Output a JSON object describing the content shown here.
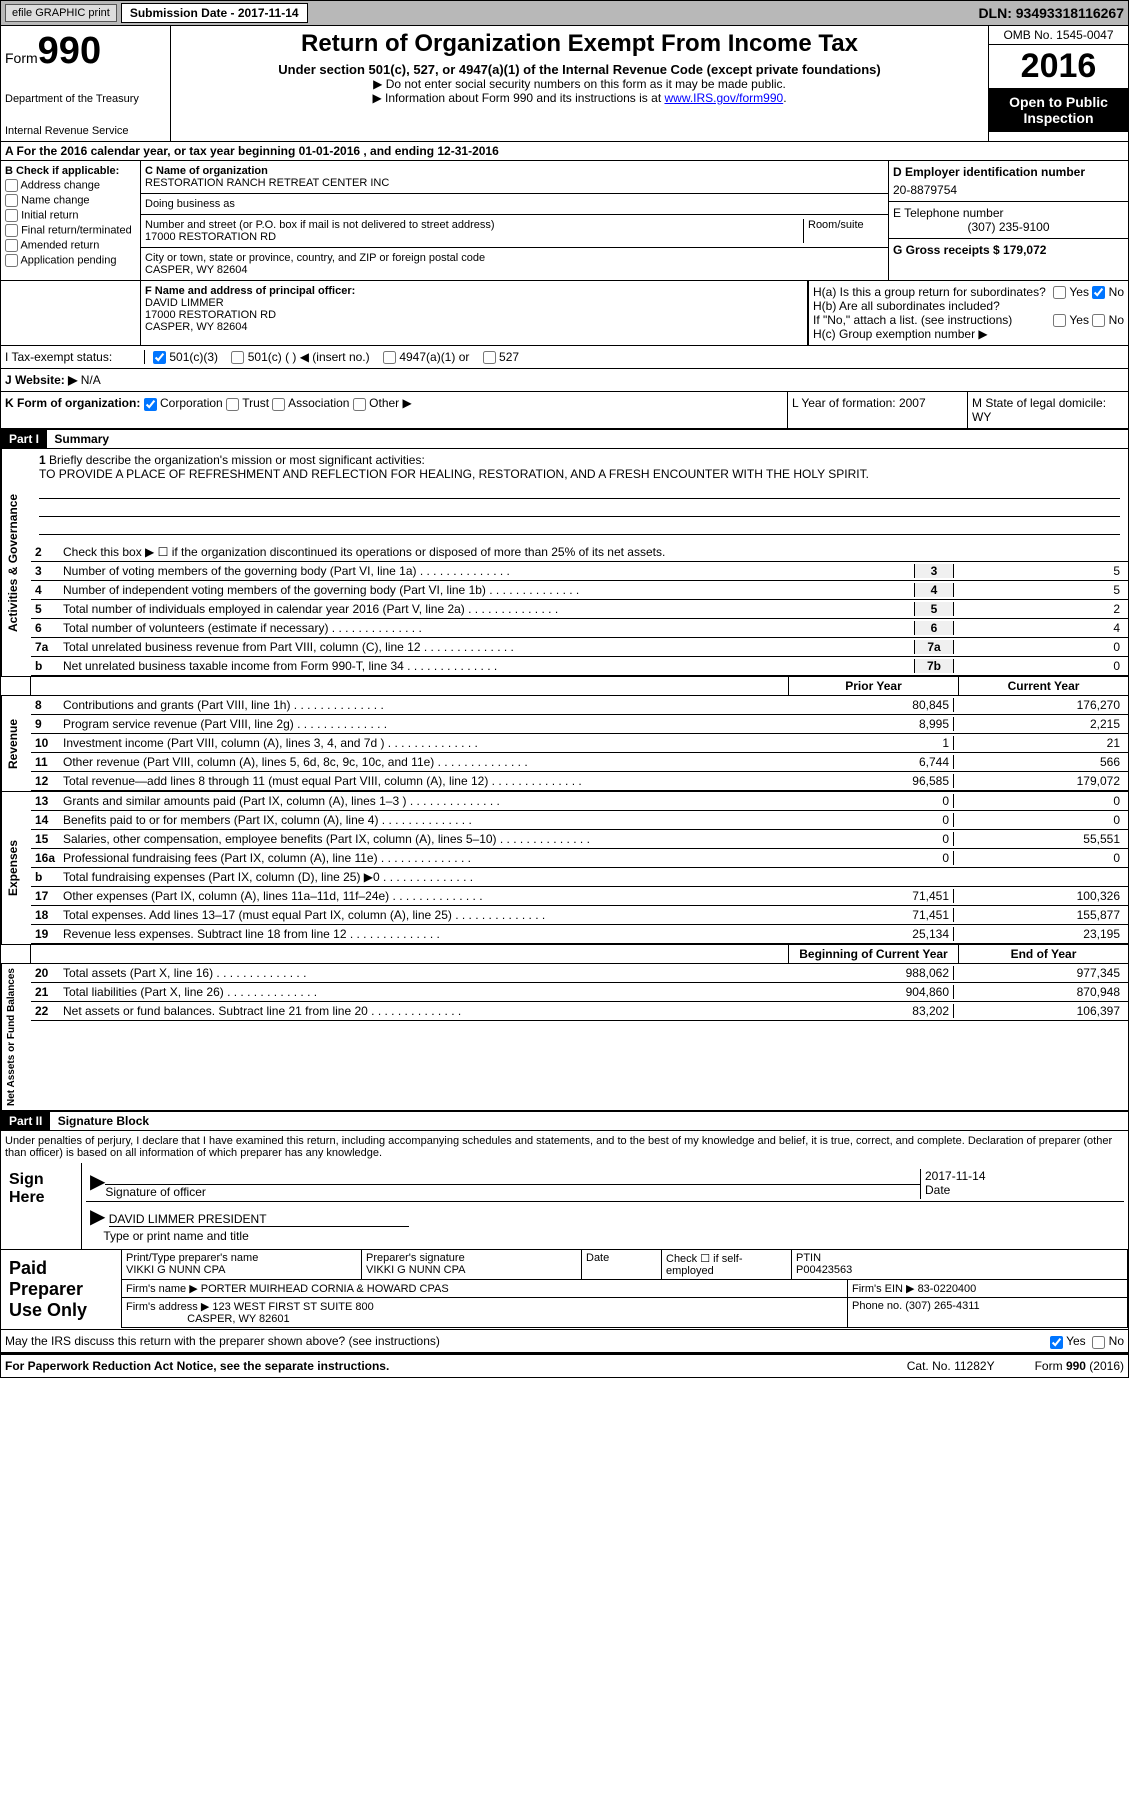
{
  "topbar": {
    "efile": "efile GRAPHIC print",
    "submission": "Submission Date - 2017-11-14",
    "dln": "DLN: 93493318116267"
  },
  "header": {
    "form_label": "Form",
    "form_num": "990",
    "dept": "Department of the Treasury",
    "irs": "Internal Revenue Service",
    "title": "Return of Organization Exempt From Income Tax",
    "subtitle": "Under section 501(c), 527, or 4947(a)(1) of the Internal Revenue Code (except private foundations)",
    "note1": "▶ Do not enter social security numbers on this form as it may be made public.",
    "note2_pre": "▶ Information about Form 990 and its instructions is at ",
    "note2_link": "www.IRS.gov/form990",
    "omb": "OMB No. 1545-0047",
    "year": "2016",
    "open": "Open to Public Inspection"
  },
  "section_a": "A  For the 2016 calendar year, or tax year beginning 01-01-2016    , and ending 12-31-2016",
  "b": {
    "label": "B Check if applicable:",
    "items": [
      "Address change",
      "Name change",
      "Initial return",
      "Final return/terminated",
      "Amended return",
      "Application pending"
    ]
  },
  "c": {
    "name_label": "C Name of organization",
    "name": "RESTORATION RANCH RETREAT CENTER INC",
    "dba_label": "Doing business as",
    "addr_label": "Number and street (or P.O. box if mail is not delivered to street address)",
    "room": "Room/suite",
    "addr": "17000 RESTORATION RD",
    "city_label": "City or town, state or province, country, and ZIP or foreign postal code",
    "city": "CASPER, WY 82604"
  },
  "d": {
    "ein_label": "D Employer identification number",
    "ein": "20-8879754",
    "phone_label": "E Telephone number",
    "phone": "(307) 235-9100",
    "gross_label": "G Gross receipts $ 179,072"
  },
  "f": {
    "label": "F Name and address of principal officer:",
    "name": "DAVID LIMMER",
    "addr1": "17000 RESTORATION RD",
    "addr2": "CASPER, WY  82604"
  },
  "h": {
    "a": "H(a)  Is this a group return for subordinates?",
    "b": "H(b)  Are all subordinates included?",
    "b_note": "If \"No,\" attach a list. (see instructions)",
    "c": "H(c)  Group exemption number ▶",
    "yes": "Yes",
    "no": "No"
  },
  "i": {
    "label": "I  Tax-exempt status:",
    "o1": "501(c)(3)",
    "o2": "501(c) (   ) ◀ (insert no.)",
    "o3": "4947(a)(1) or",
    "o4": "527"
  },
  "j": {
    "label": "J  Website: ▶",
    "val": "N/A"
  },
  "k": {
    "label": "K Form of organization:",
    "corp": "Corporation",
    "trust": "Trust",
    "assoc": "Association",
    "other": "Other ▶"
  },
  "l": "L Year of formation: 2007",
  "m": "M State of legal domicile: WY",
  "part1": {
    "title": "Part I",
    "name": "Summary",
    "vert_ag": "Activities & Governance",
    "vert_rev": "Revenue",
    "vert_exp": "Expenses",
    "vert_na": "Net Assets or Fund Balances",
    "l1": "Briefly describe the organization's mission or most significant activities:",
    "mission": "TO PROVIDE A PLACE OF REFRESHMENT AND REFLECTION FOR HEALING, RESTORATION, AND A FRESH ENCOUNTER WITH THE HOLY SPIRIT.",
    "l2": "Check this box ▶ ☐  if the organization discontinued its operations or disposed of more than 25% of its net assets.",
    "lines": [
      {
        "n": "3",
        "t": "Number of voting members of the governing body (Part VI, line 1a)",
        "box": "3",
        "v": "5"
      },
      {
        "n": "4",
        "t": "Number of independent voting members of the governing body (Part VI, line 1b)",
        "box": "4",
        "v": "5"
      },
      {
        "n": "5",
        "t": "Total number of individuals employed in calendar year 2016 (Part V, line 2a)",
        "box": "5",
        "v": "2"
      },
      {
        "n": "6",
        "t": "Total number of volunteers (estimate if necessary)",
        "box": "6",
        "v": "4"
      },
      {
        "n": "7a",
        "t": "Total unrelated business revenue from Part VIII, column (C), line 12",
        "box": "7a",
        "v": "0"
      },
      {
        "n": "b",
        "t": "Net unrelated business taxable income from Form 990-T, line 34",
        "box": "7b",
        "v": "0"
      }
    ],
    "prior": "Prior Year",
    "current": "Current Year",
    "rev": [
      {
        "n": "8",
        "t": "Contributions and grants (Part VIII, line 1h)",
        "p": "80,845",
        "c": "176,270"
      },
      {
        "n": "9",
        "t": "Program service revenue (Part VIII, line 2g)",
        "p": "8,995",
        "c": "2,215"
      },
      {
        "n": "10",
        "t": "Investment income (Part VIII, column (A), lines 3, 4, and 7d )",
        "p": "1",
        "c": "21"
      },
      {
        "n": "11",
        "t": "Other revenue (Part VIII, column (A), lines 5, 6d, 8c, 9c, 10c, and 11e)",
        "p": "6,744",
        "c": "566"
      },
      {
        "n": "12",
        "t": "Total revenue—add lines 8 through 11 (must equal Part VIII, column (A), line 12)",
        "p": "96,585",
        "c": "179,072"
      }
    ],
    "exp": [
      {
        "n": "13",
        "t": "Grants and similar amounts paid (Part IX, column (A), lines 1–3 )",
        "p": "0",
        "c": "0"
      },
      {
        "n": "14",
        "t": "Benefits paid to or for members (Part IX, column (A), line 4)",
        "p": "0",
        "c": "0"
      },
      {
        "n": "15",
        "t": "Salaries, other compensation, employee benefits (Part IX, column (A), lines 5–10)",
        "p": "0",
        "c": "55,551"
      },
      {
        "n": "16a",
        "t": "Professional fundraising fees (Part IX, column (A), line 11e)",
        "p": "0",
        "c": "0"
      },
      {
        "n": "b",
        "t": "Total fundraising expenses (Part IX, column (D), line 25) ▶0",
        "p": "",
        "c": "",
        "gray": true
      },
      {
        "n": "17",
        "t": "Other expenses (Part IX, column (A), lines 11a–11d, 11f–24e)",
        "p": "71,451",
        "c": "100,326"
      },
      {
        "n": "18",
        "t": "Total expenses. Add lines 13–17 (must equal Part IX, column (A), line 25)",
        "p": "71,451",
        "c": "155,877"
      },
      {
        "n": "19",
        "t": "Revenue less expenses. Subtract line 18 from line 12",
        "p": "25,134",
        "c": "23,195"
      }
    ],
    "begin": "Beginning of Current Year",
    "end": "End of Year",
    "na": [
      {
        "n": "20",
        "t": "Total assets (Part X, line 16)",
        "p": "988,062",
        "c": "977,345"
      },
      {
        "n": "21",
        "t": "Total liabilities (Part X, line 26)",
        "p": "904,860",
        "c": "870,948"
      },
      {
        "n": "22",
        "t": "Net assets or fund balances. Subtract line 21 from line 20",
        "p": "83,202",
        "c": "106,397"
      }
    ]
  },
  "part2": {
    "title": "Part II",
    "name": "Signature Block",
    "penalty": "Under penalties of perjury, I declare that I have examined this return, including accompanying schedules and statements, and to the best of my knowledge and belief, it is true, correct, and complete. Declaration of preparer (other than officer) is based on all information of which preparer has any knowledge.",
    "sign_here": "Sign Here",
    "sig_officer": "Signature of officer",
    "date": "Date",
    "date_val": "2017-11-14",
    "officer_name": "DAVID LIMMER PRESIDENT",
    "type_name": "Type or print name and title",
    "paid": "Paid Preparer Use Only",
    "prep_name_label": "Print/Type preparer's name",
    "prep_name": "VIKKI G NUNN CPA",
    "prep_sig_label": "Preparer's signature",
    "prep_sig": "VIKKI G NUNN CPA",
    "prep_date": "Date",
    "check_self": "Check ☐ if self-employed",
    "ptin_label": "PTIN",
    "ptin": "P00423563",
    "firm_name_label": "Firm's name    ▶",
    "firm_name": "PORTER MUIRHEAD CORNIA & HOWARD CPAS",
    "firm_ein_label": "Firm's EIN ▶",
    "firm_ein": "83-0220400",
    "firm_addr_label": "Firm's address ▶",
    "firm_addr": "123 WEST FIRST ST SUITE 800",
    "firm_city": "CASPER, WY  82601",
    "phone_label": "Phone no.",
    "firm_phone": "(307) 265-4311",
    "discuss": "May the IRS discuss this return with the preparer shown above? (see instructions)",
    "yes": "Yes",
    "no": "No"
  },
  "footer": {
    "paperwork": "For Paperwork Reduction Act Notice, see the separate instructions.",
    "cat": "Cat. No. 11282Y",
    "form": "Form 990 (2016)"
  }
}
